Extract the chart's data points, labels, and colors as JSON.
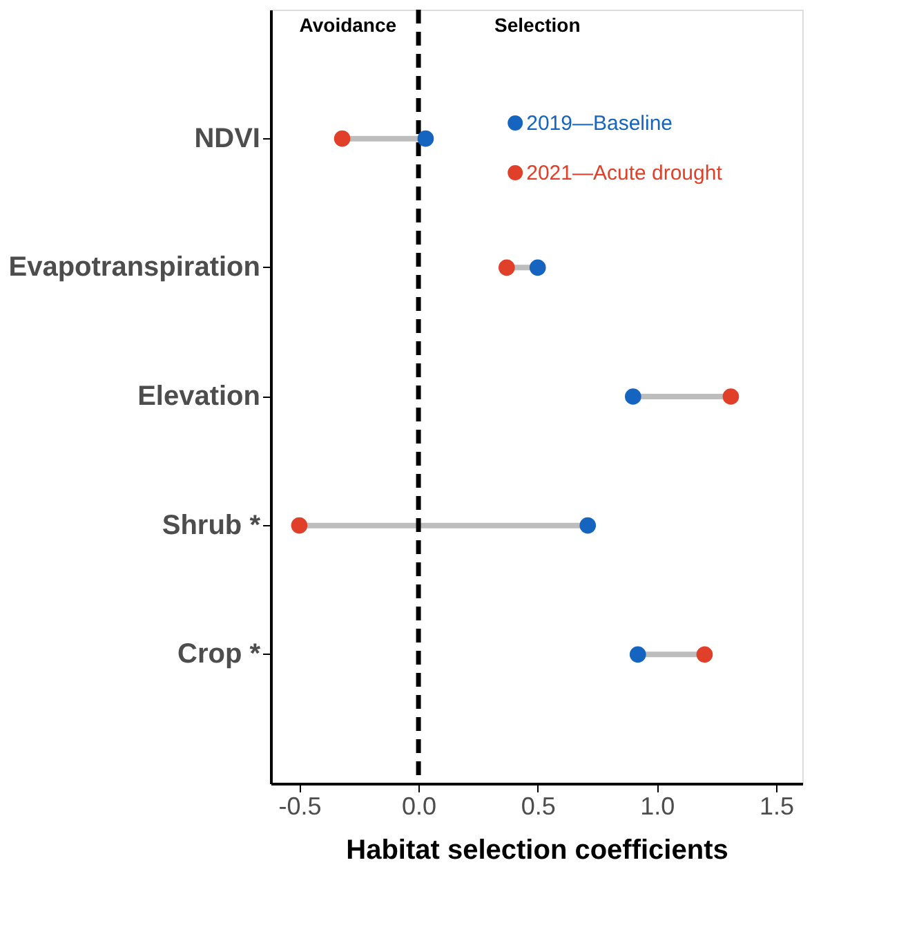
{
  "chart_data": {
    "type": "scatter",
    "categories": [
      "NDVI",
      "Evapotranspiration",
      "Elevation",
      "Shrub *",
      "Crop *"
    ],
    "series": [
      {
        "name": "2019—Baseline",
        "color": "#1565c0",
        "values": [
          0.03,
          0.5,
          0.9,
          0.71,
          0.92
        ]
      },
      {
        "name": "2021—Acute drought",
        "color": "#e0402a",
        "values": [
          -0.32,
          0.37,
          1.31,
          -0.5,
          1.2
        ]
      }
    ],
    "xlabel": "Habitat selection coefficients",
    "xlim": [
      -0.62,
      1.61
    ],
    "xticks": [
      {
        "value": -0.5,
        "label": "-0.5"
      },
      {
        "value": 0,
        "label": "0.0"
      },
      {
        "value": 0.5,
        "label": "0.5"
      },
      {
        "value": 1,
        "label": "1.0"
      },
      {
        "value": 1.5,
        "label": "1.5"
      }
    ],
    "ref_lines": [
      {
        "axis": "x",
        "value": 0,
        "color": "#000000",
        "line_style": "dashed"
      }
    ],
    "annotations": [
      "Avoidance",
      "Selection"
    ],
    "marker": "circle",
    "legend": "top right",
    "orientation": "horizontal"
  }
}
